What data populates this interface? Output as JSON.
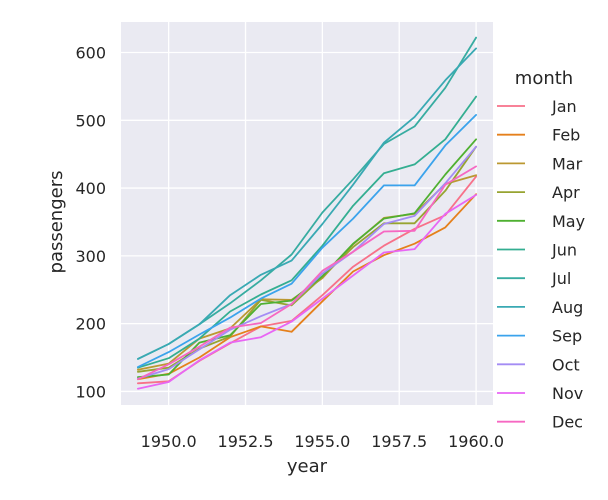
{
  "chart_data": {
    "type": "line",
    "xlabel": "year",
    "ylabel": "passengers",
    "xlim": [
      1948.45,
      1960.55
    ],
    "ylim": [
      80,
      645
    ],
    "x_ticks": [
      1950.0,
      1952.5,
      1955.0,
      1957.5,
      1960.0
    ],
    "x_tick_labels": [
      "1950.0",
      "1952.5",
      "1955.0",
      "1957.5",
      "1960.0"
    ],
    "y_ticks": [
      100,
      200,
      300,
      400,
      500,
      600
    ],
    "y_tick_labels": [
      "100",
      "200",
      "300",
      "400",
      "500",
      "600"
    ],
    "grid": true,
    "background": "#eaeaf2",
    "legend_title": "month",
    "legend_position": "right",
    "x": [
      1949,
      1950,
      1951,
      1952,
      1953,
      1954,
      1955,
      1956,
      1957,
      1958,
      1959,
      1960
    ],
    "series": [
      {
        "name": "Jan",
        "color": "#f77189",
        "values": [
          112,
          115,
          145,
          171,
          196,
          204,
          242,
          284,
          315,
          340,
          360,
          417
        ]
      },
      {
        "name": "Feb",
        "color": "#e5801c",
        "values": [
          118,
          126,
          150,
          180,
          196,
          188,
          233,
          277,
          301,
          318,
          342,
          391
        ]
      },
      {
        "name": "Mar",
        "color": "#bb9831",
        "values": [
          132,
          141,
          178,
          193,
          236,
          235,
          267,
          317,
          356,
          362,
          406,
          419
        ]
      },
      {
        "name": "Apr",
        "color": "#97a431",
        "values": [
          129,
          135,
          163,
          181,
          235,
          227,
          269,
          313,
          348,
          348,
          396,
          461
        ]
      },
      {
        "name": "May",
        "color": "#4fb031",
        "values": [
          121,
          125,
          172,
          183,
          229,
          234,
          270,
          318,
          355,
          363,
          420,
          472
        ]
      },
      {
        "name": "Jun",
        "color": "#34ae91",
        "values": [
          135,
          149,
          178,
          218,
          243,
          264,
          315,
          374,
          422,
          435,
          472,
          535
        ]
      },
      {
        "name": "Jul",
        "color": "#37aca1",
        "values": [
          148,
          170,
          199,
          230,
          264,
          302,
          364,
          413,
          465,
          491,
          548,
          622
        ]
      },
      {
        "name": "Aug",
        "color": "#39a9b3",
        "values": [
          148,
          170,
          199,
          242,
          272,
          293,
          347,
          405,
          467,
          505,
          559,
          606
        ]
      },
      {
        "name": "Sep",
        "color": "#3ba3ec",
        "values": [
          136,
          158,
          184,
          209,
          237,
          259,
          312,
          355,
          404,
          404,
          463,
          508
        ]
      },
      {
        "name": "Oct",
        "color": "#a48cf4",
        "values": [
          119,
          133,
          162,
          191,
          211,
          229,
          274,
          306,
          347,
          359,
          407,
          461
        ]
      },
      {
        "name": "Nov",
        "color": "#e866f4",
        "values": [
          104,
          114,
          146,
          172,
          180,
          203,
          237,
          271,
          305,
          310,
          362,
          390
        ]
      },
      {
        "name": "Dec",
        "color": "#f668c2",
        "values": [
          118,
          140,
          166,
          194,
          201,
          229,
          278,
          306,
          336,
          337,
          405,
          432
        ]
      }
    ]
  }
}
